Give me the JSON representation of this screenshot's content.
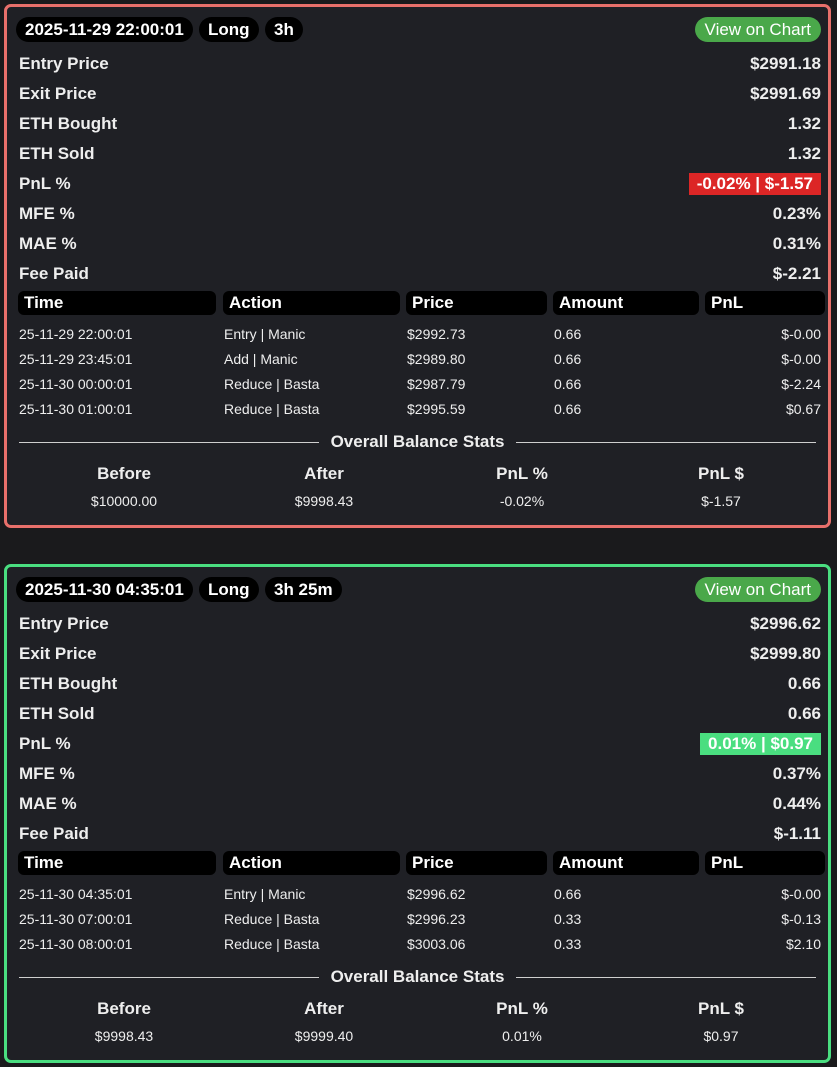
{
  "trades": [
    {
      "color": "#e8706b",
      "header": {
        "datetime": "2025-11-29 22:00:01",
        "side": "Long",
        "duration": "3h",
        "button": "View on Chart"
      },
      "stats": [
        {
          "label": "Entry Price",
          "value": "$2991.18"
        },
        {
          "label": "Exit Price",
          "value": "$2991.69"
        },
        {
          "label": "ETH Bought",
          "value": "1.32"
        },
        {
          "label": "ETH Sold",
          "value": "1.32"
        },
        {
          "label": "PnL %",
          "value": "-0.02% | $-1.57",
          "highlight_color": "#dc2626"
        },
        {
          "label": "MFE %",
          "value": "0.23%"
        },
        {
          "label": "MAE %",
          "value": "0.31%"
        },
        {
          "label": "Fee Paid",
          "value": "$-2.21"
        }
      ],
      "table": {
        "columns": [
          "Time",
          "Action",
          "Price",
          "Amount",
          "PnL"
        ],
        "rows": [
          [
            "25-11-29 22:00:01",
            "Entry | Manic",
            "$2992.73",
            "0.66",
            "$-0.00"
          ],
          [
            "25-11-29 23:45:01",
            "Add | Manic",
            "$2989.80",
            "0.66",
            "$-0.00"
          ],
          [
            "25-11-30 00:00:01",
            "Reduce | Basta",
            "$2987.79",
            "0.66",
            "$-2.24"
          ],
          [
            "25-11-30 01:00:01",
            "Reduce | Basta",
            "$2995.59",
            "0.66",
            "$0.67"
          ]
        ]
      },
      "balance": {
        "title": "Overall Balance Stats",
        "columns": [
          "Before",
          "After",
          "PnL %",
          "PnL $"
        ],
        "values": [
          "$10000.00",
          "$9998.43",
          "-0.02%",
          "$-1.57"
        ]
      }
    },
    {
      "color": "#4ade80",
      "header": {
        "datetime": "2025-11-30 04:35:01",
        "side": "Long",
        "duration": "3h 25m",
        "button": "View on Chart"
      },
      "stats": [
        {
          "label": "Entry Price",
          "value": "$2996.62"
        },
        {
          "label": "Exit Price",
          "value": "$2999.80"
        },
        {
          "label": "ETH Bought",
          "value": "0.66"
        },
        {
          "label": "ETH Sold",
          "value": "0.66"
        },
        {
          "label": "PnL %",
          "value": "0.01% | $0.97",
          "highlight_color": "#4ade80"
        },
        {
          "label": "MFE %",
          "value": "0.37%"
        },
        {
          "label": "MAE %",
          "value": "0.44%"
        },
        {
          "label": "Fee Paid",
          "value": "$-1.11"
        }
      ],
      "table": {
        "columns": [
          "Time",
          "Action",
          "Price",
          "Amount",
          "PnL"
        ],
        "rows": [
          [
            "25-11-30 04:35:01",
            "Entry | Manic",
            "$2996.62",
            "0.66",
            "$-0.00"
          ],
          [
            "25-11-30 07:00:01",
            "Reduce | Basta",
            "$2996.23",
            "0.33",
            "$-0.13"
          ],
          [
            "25-11-30 08:00:01",
            "Reduce | Basta",
            "$3003.06",
            "0.33",
            "$2.10"
          ]
        ]
      },
      "balance": {
        "title": "Overall Balance Stats",
        "columns": [
          "Before",
          "After",
          "PnL %",
          "PnL $"
        ],
        "values": [
          "$9998.43",
          "$9999.40",
          "0.01%",
          "$0.97"
        ]
      }
    }
  ]
}
